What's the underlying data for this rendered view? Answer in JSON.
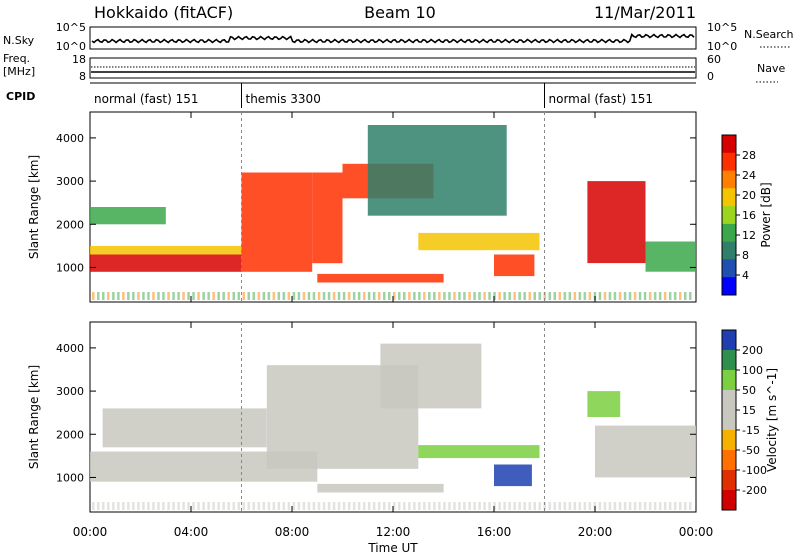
{
  "header": {
    "site": "Hokkaido (fitACF)",
    "beam": "Beam 10",
    "date": "11/Mar/2011"
  },
  "left_labels": {
    "nsky": "N.Sky",
    "nsky_top": "10^5",
    "nsky_bottom": "10^0",
    "freq": "Freq.",
    "freq_unit": "[MHz]",
    "freq_top": "18",
    "freq_bottom": "8",
    "cpid": "CPID"
  },
  "right_labels": {
    "nsearch": "N.Search",
    "nsearch_top": "10^5",
    "nsearch_bottom": "10^0",
    "nave": "Nave",
    "nave_top": "60",
    "nave_bottom": "0"
  },
  "cpid_modes": [
    {
      "label": "normal (fast) 151",
      "start": 0
    },
    {
      "label": "themis 3300",
      "start": 6.0
    },
    {
      "label": "normal (fast) 151",
      "start": 18.0
    }
  ],
  "x_axis": {
    "label": "Time UT",
    "ticks": [
      "00:00",
      "04:00",
      "08:00",
      "12:00",
      "16:00",
      "20:00",
      "00:00"
    ],
    "tick_hours": [
      0,
      4,
      8,
      12,
      16,
      20,
      24
    ]
  },
  "chart_data": [
    {
      "type": "heatmap",
      "title": "Power",
      "xlabel": "Time UT",
      "ylabel": "Slant Range [km]",
      "xlim": [
        0,
        24
      ],
      "ylim": [
        200,
        4600
      ],
      "y_ticks": [
        1000,
        2000,
        3000,
        4000
      ],
      "colorbar": {
        "label": "Power [dB]",
        "ticks": [
          "28",
          "24",
          "20",
          "16",
          "12",
          "8",
          "4"
        ],
        "colors": [
          "#d70000",
          "#ff3000",
          "#ff8000",
          "#f5c400",
          "#9bd520",
          "#3aa84a",
          "#2f7f6a",
          "#1f4fb0",
          "#0000ff"
        ]
      },
      "regions": [
        {
          "t0": 0,
          "t1": 6,
          "r0": 900,
          "r1": 1300,
          "level": 26
        },
        {
          "t0": 0,
          "t1": 6,
          "r0": 1300,
          "r1": 1500,
          "level": 18
        },
        {
          "t0": 0,
          "t1": 3,
          "r0": 2000,
          "r1": 2400,
          "level": 12
        },
        {
          "t0": 6,
          "t1": 8.8,
          "r0": 900,
          "r1": 3200,
          "level": 24
        },
        {
          "t0": 8.8,
          "t1": 10,
          "r0": 1100,
          "r1": 3200,
          "level": 22
        },
        {
          "t0": 10,
          "t1": 13.6,
          "r0": 2600,
          "r1": 3400,
          "level": 24
        },
        {
          "t0": 9,
          "t1": 14,
          "r0": 650,
          "r1": 850,
          "level": 24
        },
        {
          "t0": 11,
          "t1": 16.5,
          "r0": 2200,
          "r1": 4300,
          "level": 8
        },
        {
          "t0": 13,
          "t1": 17.8,
          "r0": 1400,
          "r1": 1800,
          "level": 16
        },
        {
          "t0": 16,
          "t1": 17.6,
          "r0": 800,
          "r1": 1300,
          "level": 22
        },
        {
          "t0": 19.7,
          "t1": 22,
          "r0": 1100,
          "r1": 3000,
          "level": 26
        },
        {
          "t0": 22,
          "t1": 24,
          "r0": 900,
          "r1": 1600,
          "level": 14
        }
      ]
    },
    {
      "type": "heatmap",
      "title": "Velocity",
      "xlabel": "Time UT",
      "ylabel": "Slant Range [km]",
      "xlim": [
        0,
        24
      ],
      "ylim": [
        200,
        4600
      ],
      "y_ticks": [
        1000,
        2000,
        3000,
        4000
      ],
      "colorbar": {
        "label": "Velocity [m s^-1]",
        "ticks": [
          "200",
          "100",
          "50",
          "15",
          "-15",
          "-50",
          "-100",
          "-200"
        ],
        "colors": [
          "#1f3fb0",
          "#2f8f4f",
          "#7ad040",
          "#c8c8c0",
          "#c8c8c0",
          "#f5b000",
          "#ff7000",
          "#e03000",
          "#d00000"
        ]
      },
      "regions": [
        {
          "t0": 0,
          "t1": 9,
          "r0": 900,
          "r1": 1600,
          "level": 0
        },
        {
          "t0": 0.5,
          "t1": 7,
          "r0": 1700,
          "r1": 2600,
          "level": 0
        },
        {
          "t0": 7,
          "t1": 13,
          "r0": 1200,
          "r1": 3600,
          "level": 0
        },
        {
          "t0": 11.5,
          "t1": 15.5,
          "r0": 2600,
          "r1": 4100,
          "level": 0
        },
        {
          "t0": 9,
          "t1": 14,
          "r0": 650,
          "r1": 850,
          "level": 0
        },
        {
          "t0": 13,
          "t1": 17.8,
          "r0": 1450,
          "r1": 1750,
          "level": 60
        },
        {
          "t0": 16,
          "t1": 17.5,
          "r0": 800,
          "r1": 1300,
          "level": 150
        },
        {
          "t0": 20,
          "t1": 24,
          "r0": 1000,
          "r1": 2200,
          "level": 0
        },
        {
          "t0": 19.7,
          "t1": 21,
          "r0": 2400,
          "r1": 3000,
          "level": 60
        }
      ]
    }
  ]
}
